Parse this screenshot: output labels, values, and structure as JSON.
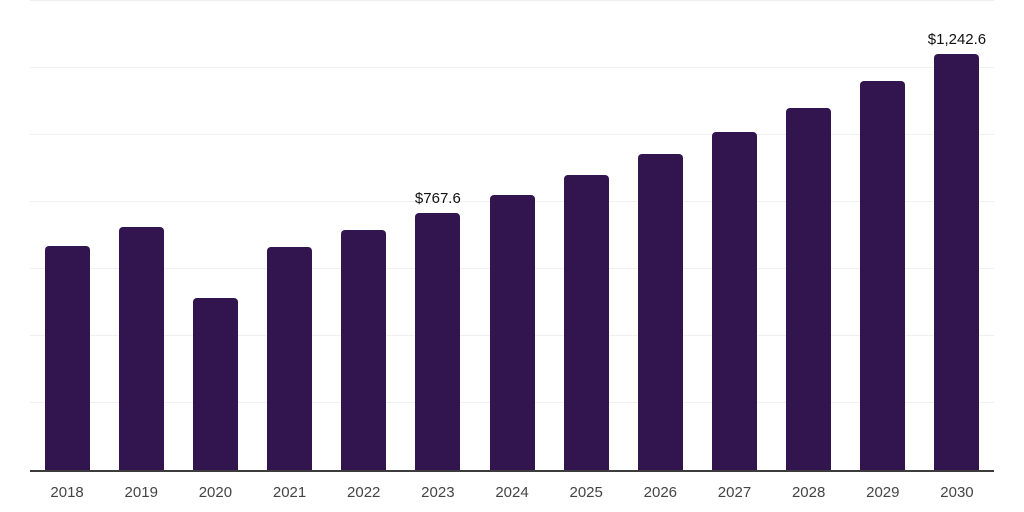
{
  "chart": {
    "background_color": "#ffffff",
    "bar_color": "#32144e",
    "axis_line_color": "#3c3c3c",
    "gridline_color": "#f0f0f0",
    "x_label_color": "#444444",
    "value_label_color": "#111111"
  },
  "chart_data": {
    "type": "bar",
    "title": "",
    "xlabel": "",
    "ylabel": "",
    "categories": [
      "2018",
      "2019",
      "2020",
      "2021",
      "2022",
      "2023",
      "2024",
      "2025",
      "2026",
      "2027",
      "2028",
      "2029",
      "2030"
    ],
    "values": [
      670,
      725,
      514,
      665,
      716,
      767.6,
      822,
      881,
      943,
      1010,
      1082,
      1160,
      1242.6
    ],
    "value_labels": {
      "2023": "$767.6",
      "2030": "$1,242.6"
    },
    "ylim": [
      0,
      1400
    ],
    "gridline_step": 200,
    "grid": true,
    "legend": false,
    "y_axis_ticks_visible": false
  }
}
